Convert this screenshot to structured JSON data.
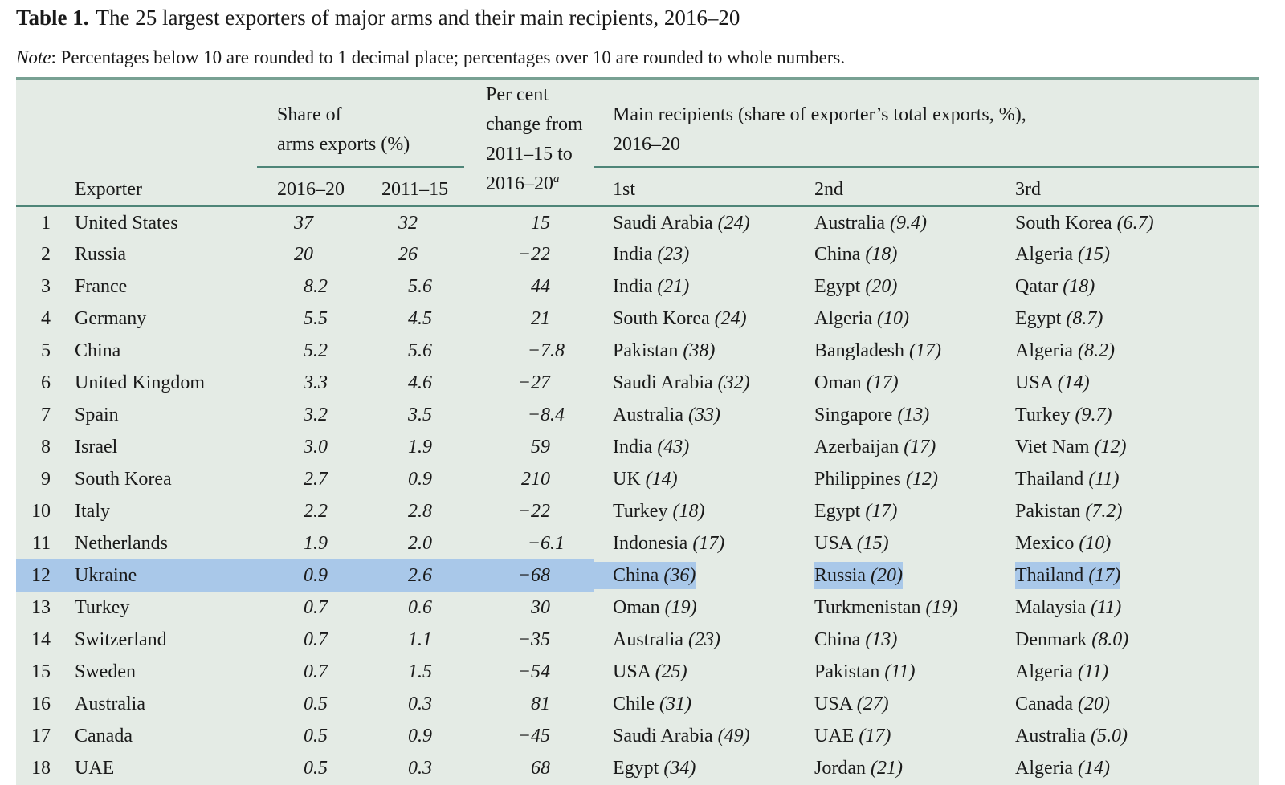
{
  "title": {
    "label": "Table 1.",
    "text": "The 25 largest exporters of major arms and their main recipients, 2016–20"
  },
  "note": {
    "label": "Note",
    "text": ": Percentages below 10 are rounded to 1 decimal place; percentages over 10 are rounded to whole numbers."
  },
  "colors": {
    "table_background": "#e4ebe5",
    "selection_highlight": "#a9c8e9",
    "rule_line": "#4e8578",
    "top_border": "#78a193"
  },
  "table": {
    "group_headers": {
      "share_lines": [
        "Share of",
        "arms exports (%)"
      ],
      "pct_change_lines": [
        "Per cent",
        "change from",
        "2011–15 to"
      ],
      "pct_change_last": "2016–20",
      "pct_change_sup": "a",
      "recipients_lines": [
        "Main recipients (share of exporter’s total exports, %),",
        "2016–20"
      ]
    },
    "columns": {
      "exporter": "Exporter",
      "share1": "2016–20",
      "share2": "2011–15",
      "r1": "1st",
      "r2": "2nd",
      "r3": "3rd"
    },
    "rows": [
      {
        "rank": "1",
        "exporter": "United States",
        "share_2016_20": "37",
        "share_2011_15": "32",
        "pct_change": "15",
        "selected": false,
        "recipients": [
          {
            "name": "Saudi Arabia",
            "share": "24"
          },
          {
            "name": "Australia",
            "share": "9.4"
          },
          {
            "name": "South Korea",
            "share": "6.7"
          }
        ]
      },
      {
        "rank": "2",
        "exporter": "Russia",
        "share_2016_20": "20",
        "share_2011_15": "26",
        "pct_change": "−22",
        "selected": false,
        "recipients": [
          {
            "name": "India",
            "share": "23"
          },
          {
            "name": "China",
            "share": "18"
          },
          {
            "name": "Algeria",
            "share": "15"
          }
        ]
      },
      {
        "rank": "3",
        "exporter": "France",
        "share_2016_20": "8.2",
        "share_2011_15": "5.6",
        "pct_change": "44",
        "selected": false,
        "recipients": [
          {
            "name": "India",
            "share": "21"
          },
          {
            "name": "Egypt",
            "share": "20"
          },
          {
            "name": "Qatar",
            "share": "18"
          }
        ]
      },
      {
        "rank": "4",
        "exporter": "Germany",
        "share_2016_20": "5.5",
        "share_2011_15": "4.5",
        "pct_change": "21",
        "selected": false,
        "recipients": [
          {
            "name": "South Korea",
            "share": "24"
          },
          {
            "name": "Algeria",
            "share": "10"
          },
          {
            "name": "Egypt",
            "share": "8.7"
          }
        ]
      },
      {
        "rank": "5",
        "exporter": "China",
        "share_2016_20": "5.2",
        "share_2011_15": "5.6",
        "pct_change": "−7.8",
        "selected": false,
        "recipients": [
          {
            "name": "Pakistan",
            "share": "38"
          },
          {
            "name": "Bangladesh",
            "share": "17"
          },
          {
            "name": "Algeria",
            "share": "8.2"
          }
        ]
      },
      {
        "rank": "6",
        "exporter": "United Kingdom",
        "share_2016_20": "3.3",
        "share_2011_15": "4.6",
        "pct_change": "−27",
        "selected": false,
        "recipients": [
          {
            "name": "Saudi Arabia",
            "share": "32"
          },
          {
            "name": "Oman",
            "share": "17"
          },
          {
            "name": "USA",
            "share": "14"
          }
        ]
      },
      {
        "rank": "7",
        "exporter": "Spain",
        "share_2016_20": "3.2",
        "share_2011_15": "3.5",
        "pct_change": "−8.4",
        "selected": false,
        "recipients": [
          {
            "name": "Australia",
            "share": "33"
          },
          {
            "name": "Singapore",
            "share": "13"
          },
          {
            "name": "Turkey",
            "share": "9.7"
          }
        ]
      },
      {
        "rank": "8",
        "exporter": "Israel",
        "share_2016_20": "3.0",
        "share_2011_15": "1.9",
        "pct_change": "59",
        "selected": false,
        "recipients": [
          {
            "name": "India",
            "share": "43"
          },
          {
            "name": "Azerbaijan",
            "share": "17"
          },
          {
            "name": "Viet Nam",
            "share": "12"
          }
        ]
      },
      {
        "rank": "9",
        "exporter": "South Korea",
        "share_2016_20": "2.7",
        "share_2011_15": "0.9",
        "pct_change": "210",
        "selected": false,
        "recipients": [
          {
            "name": "UK",
            "share": "14"
          },
          {
            "name": "Philippines",
            "share": "12"
          },
          {
            "name": "Thailand",
            "share": "11"
          }
        ]
      },
      {
        "rank": "10",
        "exporter": "Italy",
        "share_2016_20": "2.2",
        "share_2011_15": "2.8",
        "pct_change": "−22",
        "selected": false,
        "recipients": [
          {
            "name": "Turkey",
            "share": "18"
          },
          {
            "name": "Egypt",
            "share": "17"
          },
          {
            "name": "Pakistan",
            "share": "7.2"
          }
        ]
      },
      {
        "rank": "11",
        "exporter": "Netherlands",
        "share_2016_20": "1.9",
        "share_2011_15": "2.0",
        "pct_change": "−6.1",
        "selected": false,
        "recipients": [
          {
            "name": "Indonesia",
            "share": "17"
          },
          {
            "name": "USA",
            "share": "15"
          },
          {
            "name": "Mexico",
            "share": "10"
          }
        ]
      },
      {
        "rank": "12",
        "exporter": "Ukraine",
        "share_2016_20": "0.9",
        "share_2011_15": "2.6",
        "pct_change": "−68",
        "selected": true,
        "recipients": [
          {
            "name": "China",
            "share": "36"
          },
          {
            "name": "Russia",
            "share": "20"
          },
          {
            "name": "Thailand",
            "share": "17"
          }
        ]
      },
      {
        "rank": "13",
        "exporter": "Turkey",
        "share_2016_20": "0.7",
        "share_2011_15": "0.6",
        "pct_change": "30",
        "selected": false,
        "recipients": [
          {
            "name": "Oman",
            "share": "19"
          },
          {
            "name": "Turkmenistan",
            "share": "19"
          },
          {
            "name": "Malaysia",
            "share": "11"
          }
        ]
      },
      {
        "rank": "14",
        "exporter": "Switzerland",
        "share_2016_20": "0.7",
        "share_2011_15": "1.1",
        "pct_change": "−35",
        "selected": false,
        "recipients": [
          {
            "name": "Australia",
            "share": "23"
          },
          {
            "name": "China",
            "share": "13"
          },
          {
            "name": "Denmark",
            "share": "8.0"
          }
        ]
      },
      {
        "rank": "15",
        "exporter": "Sweden",
        "share_2016_20": "0.7",
        "share_2011_15": "1.5",
        "pct_change": "−54",
        "selected": false,
        "recipients": [
          {
            "name": "USA",
            "share": "25"
          },
          {
            "name": "Pakistan",
            "share": "11"
          },
          {
            "name": "Algeria",
            "share": "11"
          }
        ]
      },
      {
        "rank": "16",
        "exporter": "Australia",
        "share_2016_20": "0.5",
        "share_2011_15": "0.3",
        "pct_change": "81",
        "selected": false,
        "recipients": [
          {
            "name": "Chile",
            "share": "31"
          },
          {
            "name": "USA",
            "share": "27"
          },
          {
            "name": "Canada",
            "share": "20"
          }
        ]
      },
      {
        "rank": "17",
        "exporter": "Canada",
        "share_2016_20": "0.5",
        "share_2011_15": "0.9",
        "pct_change": "−45",
        "selected": false,
        "recipients": [
          {
            "name": "Saudi Arabia",
            "share": "49"
          },
          {
            "name": "UAE",
            "share": "17"
          },
          {
            "name": "Australia",
            "share": "5.0"
          }
        ]
      },
      {
        "rank": "18",
        "exporter": "UAE",
        "share_2016_20": "0.5",
        "share_2011_15": "0.3",
        "pct_change": "68",
        "selected": false,
        "recipients": [
          {
            "name": "Egypt",
            "share": "34"
          },
          {
            "name": "Jordan",
            "share": "21"
          },
          {
            "name": "Algeria",
            "share": "14"
          }
        ]
      }
    ]
  }
}
